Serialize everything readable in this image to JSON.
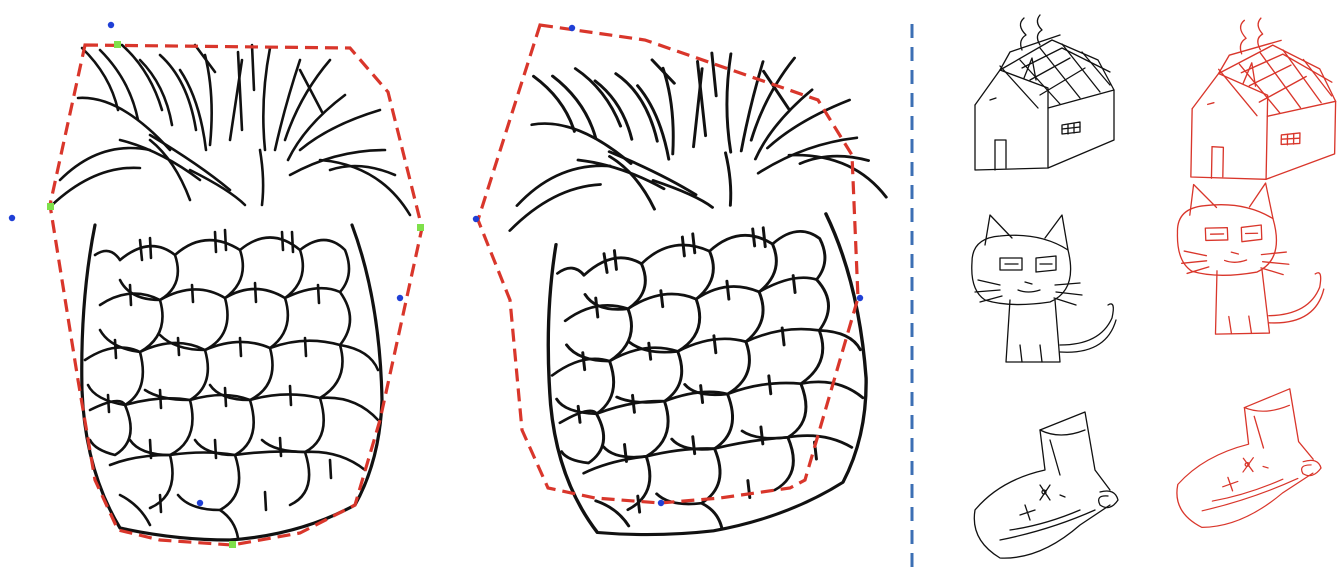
{
  "figure": {
    "type": "sketch-augmentation-diagram",
    "colors": {
      "sketch": "#111111",
      "hull": "#d9362b",
      "anchor_point": "#1f3fd6",
      "hull_vertex": "#7ee04a",
      "divider": "#3c6fb4",
      "augmented_sketch": "#d9362b"
    },
    "panels": [
      {
        "name": "pineapple-original-with-convex-hull",
        "subject": "pineapple",
        "hull": "convex",
        "control_points": "blue-and-green"
      },
      {
        "name": "pineapple-warped-with-convex-hull",
        "subject": "pineapple",
        "hull": "convex",
        "control_points": "blue"
      }
    ],
    "examples": [
      {
        "subject": "house",
        "original_color": "#111111",
        "augmented_color": "#d9362b"
      },
      {
        "subject": "cat",
        "original_color": "#111111",
        "augmented_color": "#d9362b"
      },
      {
        "subject": "shoe",
        "original_color": "#111111",
        "augmented_color": "#d9362b"
      }
    ]
  }
}
